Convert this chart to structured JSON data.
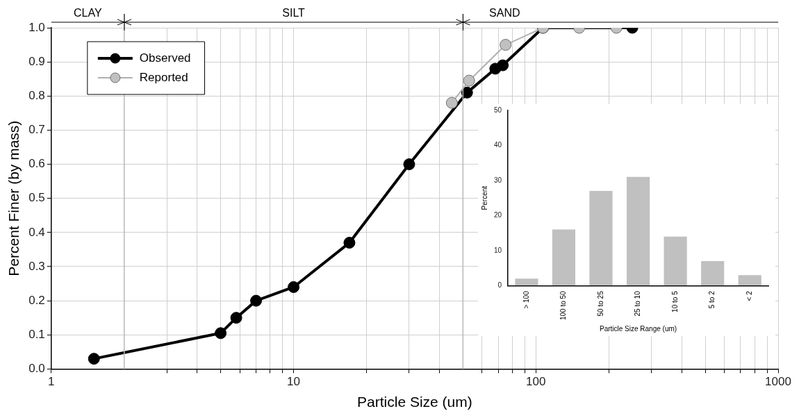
{
  "chart_data": [
    {
      "type": "line",
      "xlabel": "Particle Size (um)",
      "ylabel": "Percent Finer (by mass)",
      "log": "x",
      "grid": true,
      "legend": "top left",
      "marker": "circle",
      "line_style": "solid",
      "xlim": [
        1,
        1000
      ],
      "xticks": [
        1,
        {
          "value": 3,
          "label": null
        },
        {
          "value": 4,
          "label": null
        },
        {
          "value": 5,
          "label": null
        },
        {
          "value": 6,
          "label": null
        },
        {
          "value": 7,
          "label": null
        },
        {
          "value": 8,
          "label": null
        },
        {
          "value": 9,
          "label": null
        },
        10,
        {
          "value": 20,
          "label": null
        },
        {
          "value": 30,
          "label": null
        },
        {
          "value": 40,
          "label": null
        },
        {
          "value": 60,
          "label": null
        },
        {
          "value": 70,
          "label": null
        },
        {
          "value": 80,
          "label": null
        },
        {
          "value": 90,
          "label": null
        },
        100,
        {
          "value": 200,
          "label": null
        },
        {
          "value": 300,
          "label": null
        },
        {
          "value": 400,
          "label": null
        },
        {
          "value": 500,
          "label": null
        },
        {
          "value": 600,
          "label": null
        },
        {
          "value": 700,
          "label": null
        },
        {
          "value": 800,
          "label": null
        },
        {
          "value": 900,
          "label": null
        },
        1000
      ],
      "ylim": [
        0,
        1
      ],
      "yticks": [
        {
          "value": 0,
          "label": "0.0"
        },
        {
          "value": 0.1,
          "label": "0.1"
        },
        {
          "value": 0.2,
          "label": "0.2"
        },
        {
          "value": 0.3,
          "label": "0.3"
        },
        {
          "value": 0.4,
          "label": "0.4"
        },
        {
          "value": 0.5,
          "label": "0.5"
        },
        {
          "value": 0.6,
          "label": "0.6"
        },
        {
          "value": 0.7,
          "label": "0.7"
        },
        {
          "value": 0.8,
          "label": "0.8"
        },
        {
          "value": 0.9,
          "label": "0.9"
        },
        {
          "value": 1,
          "label": "1.0"
        }
      ],
      "ref_lines": [
        {
          "axis": "x",
          "value": 2,
          "color": "#b8b8b8"
        },
        {
          "axis": "x",
          "value": 50,
          "color": "#b8b8b8"
        }
      ],
      "annotations": [
        "CLAY",
        "SILT",
        "SAND"
      ],
      "series": [
        {
          "name": "Reported",
          "color": "#c0c0c0",
          "x": [
            45,
            53,
            75,
            107,
            151,
            215
          ],
          "values": [
            0.78,
            0.845,
            0.95,
            1,
            1,
            1
          ]
        },
        {
          "name": "Observed",
          "color": "#000000",
          "x": [
            1.5,
            5,
            5.8,
            7,
            10,
            17,
            30,
            52,
            68,
            73,
            107,
            250
          ],
          "values": [
            0.03,
            0.105,
            0.15,
            0.2,
            0.24,
            0.37,
            0.6,
            0.81,
            0.88,
            0.89,
            1,
            1
          ]
        }
      ]
    },
    {
      "type": "bar",
      "xlabel": "Particle Size Range (um)",
      "ylabel": "Percent",
      "categories": [
        "> 100",
        "100 to 50",
        "50 to 25",
        "25 to 10",
        "10 to 5",
        "5 to 2",
        "< 2"
      ],
      "values": [
        2,
        16,
        27,
        31,
        14,
        7,
        3
      ],
      "color": "#c0c0c0",
      "ylim": [
        0,
        50
      ],
      "yticks": [
        0,
        10,
        20,
        30,
        40,
        50
      ]
    }
  ]
}
